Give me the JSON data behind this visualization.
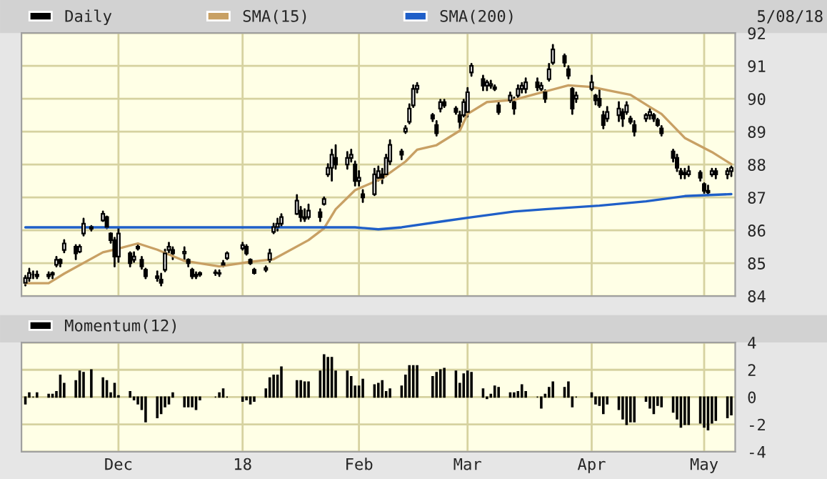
{
  "chart_data": [
    {
      "type": "candlestick",
      "legend": "top left",
      "grid": true,
      "tick_labels": "y",
      "annotations": [
        "5/08/18"
      ],
      "xlim": [
        "2017-11-06",
        "2018-05-09"
      ],
      "ylim": [
        84,
        92
      ],
      "yticks": [
        84,
        85,
        86,
        87,
        88,
        89,
        90,
        91,
        92
      ],
      "xticks": [
        {
          "value": "2017-12-01",
          "label": null
        },
        {
          "value": "2018-01-02",
          "label": null
        },
        {
          "value": "2018-02-01",
          "label": null
        },
        {
          "value": "2018-03-01",
          "label": null
        },
        {
          "value": "2018-04-02",
          "label": null
        },
        {
          "value": "2018-05-01",
          "label": null
        }
      ],
      "x": [
        "2017-11-07",
        "2017-11-08",
        "2017-11-09",
        "2017-11-10",
        "2017-11-13",
        "2017-11-14",
        "2017-11-15",
        "2017-11-16",
        "2017-11-17",
        "2017-11-20",
        "2017-11-21",
        "2017-11-22",
        "2017-11-24",
        "2017-11-27",
        "2017-11-28",
        "2017-11-29",
        "2017-11-30",
        "2017-12-01",
        "2017-12-04",
        "2017-12-05",
        "2017-12-06",
        "2017-12-07",
        "2017-12-08",
        "2017-12-11",
        "2017-12-12",
        "2017-12-13",
        "2017-12-14",
        "2017-12-15",
        "2017-12-18",
        "2017-12-19",
        "2017-12-20",
        "2017-12-21",
        "2017-12-22",
        "2017-12-26",
        "2017-12-27",
        "2017-12-28",
        "2017-12-29",
        "2018-01-02",
        "2018-01-03",
        "2018-01-04",
        "2018-01-05",
        "2018-01-08",
        "2018-01-09",
        "2018-01-10",
        "2018-01-11",
        "2018-01-12",
        "2018-01-16",
        "2018-01-17",
        "2018-01-18",
        "2018-01-19",
        "2018-01-22",
        "2018-01-23",
        "2018-01-24",
        "2018-01-25",
        "2018-01-26",
        "2018-01-29",
        "2018-01-30",
        "2018-01-31",
        "2018-02-01",
        "2018-02-02",
        "2018-02-05",
        "2018-02-06",
        "2018-02-07",
        "2018-02-08",
        "2018-02-09",
        "2018-02-12",
        "2018-02-13",
        "2018-02-14",
        "2018-02-15",
        "2018-02-16",
        "2018-02-20",
        "2018-02-21",
        "2018-02-22",
        "2018-02-23",
        "2018-02-26",
        "2018-02-27",
        "2018-02-28",
        "2018-03-01",
        "2018-03-02",
        "2018-03-05",
        "2018-03-06",
        "2018-03-07",
        "2018-03-08",
        "2018-03-09",
        "2018-03-12",
        "2018-03-13",
        "2018-03-14",
        "2018-03-15",
        "2018-03-16",
        "2018-03-19",
        "2018-03-20",
        "2018-03-21",
        "2018-03-22",
        "2018-03-23",
        "2018-03-26",
        "2018-03-27",
        "2018-03-28",
        "2018-03-29",
        "2018-04-02",
        "2018-04-03",
        "2018-04-04",
        "2018-04-05",
        "2018-04-06",
        "2018-04-09",
        "2018-04-10",
        "2018-04-11",
        "2018-04-12",
        "2018-04-13",
        "2018-04-16",
        "2018-04-17",
        "2018-04-18",
        "2018-04-19",
        "2018-04-20",
        "2018-04-23",
        "2018-04-24",
        "2018-04-25",
        "2018-04-26",
        "2018-04-27",
        "2018-04-30",
        "2018-05-01",
        "2018-05-02",
        "2018-05-03",
        "2018-05-04",
        "2018-05-07",
        "2018-05-08"
      ],
      "series": [
        {
          "name": "Daily",
          "type": "candlestick",
          "color": "#000000",
          "ohlc": [
            [
              84.4,
              84.61,
              84.32,
              84.55
            ],
            [
              84.55,
              84.83,
              84.46,
              84.7
            ],
            [
              84.65,
              84.75,
              84.54,
              84.65
            ],
            [
              84.65,
              84.75,
              84.54,
              84.6
            ],
            [
              84.6,
              84.72,
              84.54,
              84.65
            ],
            [
              84.65,
              84.72,
              84.54,
              84.7
            ],
            [
              84.95,
              85.19,
              84.9,
              85.1
            ],
            [
              85.1,
              85.12,
              84.9,
              85.0
            ],
            [
              85.4,
              85.7,
              85.33,
              85.6
            ],
            [
              85.5,
              85.55,
              85.12,
              85.3
            ],
            [
              85.35,
              85.55,
              85.33,
              85.5
            ],
            [
              85.9,
              86.35,
              85.84,
              86.2
            ],
            [
              86.1,
              86.13,
              85.99,
              86.05
            ],
            [
              86.3,
              86.57,
              86.28,
              86.5
            ],
            [
              86.4,
              86.42,
              86.06,
              86.1
            ],
            [
              85.9,
              85.91,
              85.62,
              85.7
            ],
            [
              85.7,
              85.77,
              84.9,
              85.2
            ],
            [
              85.2,
              86.06,
              85.04,
              85.9
            ],
            [
              85.3,
              85.33,
              84.9,
              85.0
            ],
            [
              85.1,
              85.33,
              85.04,
              85.2
            ],
            [
              85.45,
              85.55,
              85.41,
              85.5
            ],
            [
              85.1,
              85.19,
              84.83,
              84.9
            ],
            [
              84.8,
              84.83,
              84.54,
              84.6
            ],
            [
              84.6,
              84.75,
              84.46,
              84.55
            ],
            [
              84.5,
              84.68,
              84.32,
              84.4
            ],
            [
              84.8,
              85.41,
              84.75,
              85.3
            ],
            [
              85.4,
              85.62,
              85.33,
              85.5
            ],
            [
              85.4,
              85.48,
              85.12,
              85.3
            ],
            [
              85.3,
              85.48,
              85.12,
              85.35
            ],
            [
              85.1,
              85.12,
              84.9,
              85.0
            ],
            [
              84.8,
              84.83,
              84.54,
              84.6
            ],
            [
              84.6,
              84.72,
              84.54,
              84.65
            ],
            [
              84.65,
              84.72,
              84.61,
              84.7
            ],
            [
              84.7,
              84.78,
              84.64,
              84.72
            ],
            [
              84.7,
              84.78,
              84.61,
              84.68
            ],
            [
              84.95,
              85.07,
              84.9,
              85.0
            ],
            [
              85.15,
              85.33,
              85.12,
              85.3
            ],
            [
              85.45,
              85.62,
              85.41,
              85.55
            ],
            [
              85.5,
              85.55,
              85.26,
              85.3
            ],
            [
              85.1,
              85.12,
              84.97,
              85.0
            ],
            [
              84.8,
              84.83,
              84.68,
              84.7
            ],
            [
              84.8,
              84.9,
              84.75,
              84.85
            ],
            [
              85.1,
              85.41,
              85.04,
              85.3
            ],
            [
              85.95,
              86.2,
              85.91,
              86.1
            ],
            [
              86.1,
              86.35,
              85.99,
              86.2
            ],
            [
              86.2,
              86.49,
              86.13,
              86.4
            ],
            [
              86.5,
              87.07,
              86.49,
              86.9
            ],
            [
              86.6,
              86.71,
              86.28,
              86.4
            ],
            [
              86.4,
              86.64,
              86.28,
              86.35
            ],
            [
              86.4,
              86.78,
              86.35,
              86.6
            ],
            [
              86.55,
              86.64,
              86.28,
              86.4
            ],
            [
              86.8,
              87.0,
              86.78,
              86.95
            ],
            [
              87.7,
              88.01,
              87.65,
              87.9
            ],
            [
              87.9,
              88.45,
              87.51,
              88.3
            ],
            [
              88.2,
              88.59,
              87.87,
              88.0
            ],
            [
              88.0,
              88.38,
              87.87,
              88.2
            ],
            [
              88.2,
              88.45,
              88.09,
              88.3
            ],
            [
              88.0,
              88.09,
              87.36,
              87.5
            ],
            [
              87.5,
              87.8,
              87.36,
              87.6
            ],
            [
              87.1,
              87.22,
              86.86,
              87.0
            ],
            [
              87.1,
              87.87,
              87.07,
              87.7
            ],
            [
              87.6,
              87.94,
              87.51,
              87.8
            ],
            [
              87.7,
              87.87,
              87.43,
              87.6
            ],
            [
              87.7,
              88.3,
              87.65,
              88.2
            ],
            [
              88.1,
              88.74,
              88.01,
              88.6
            ],
            [
              88.4,
              88.45,
              88.16,
              88.3
            ],
            [
              89.0,
              89.17,
              88.96,
              89.1
            ],
            [
              89.3,
              89.83,
              89.25,
              89.7
            ],
            [
              89.8,
              90.41,
              89.75,
              90.3
            ],
            [
              90.3,
              90.48,
              90.19,
              90.4
            ],
            [
              89.5,
              89.54,
              89.32,
              89.4
            ],
            [
              89.2,
              89.32,
              88.88,
              88.95
            ],
            [
              89.7,
              89.97,
              89.61,
              89.9
            ],
            [
              89.9,
              89.97,
              89.75,
              89.8
            ],
            [
              89.7,
              89.75,
              89.54,
              89.6
            ],
            [
              89.5,
              89.61,
              89.1,
              89.3
            ],
            [
              89.5,
              89.97,
              89.46,
              89.9
            ],
            [
              89.6,
              90.33,
              89.46,
              90.2
            ],
            [
              90.8,
              91.06,
              90.7,
              91.0
            ],
            [
              90.6,
              90.7,
              90.26,
              90.4
            ],
            [
              90.4,
              90.55,
              90.26,
              90.5
            ],
            [
              90.4,
              90.55,
              90.33,
              90.45
            ],
            [
              90.35,
              90.41,
              90.26,
              90.3
            ],
            [
              89.8,
              89.9,
              89.54,
              89.6
            ],
            [
              89.95,
              90.19,
              89.9,
              90.1
            ],
            [
              89.9,
              90.04,
              89.54,
              89.7
            ],
            [
              90.1,
              90.41,
              90.04,
              90.3
            ],
            [
              90.3,
              90.48,
              90.19,
              90.4
            ],
            [
              90.3,
              90.62,
              90.19,
              90.5
            ],
            [
              90.5,
              90.62,
              90.26,
              90.35
            ],
            [
              90.3,
              90.48,
              90.26,
              90.4
            ],
            [
              90.2,
              90.26,
              89.9,
              90.0
            ],
            [
              90.6,
              91.06,
              90.55,
              90.9
            ],
            [
              91.1,
              91.64,
              91.06,
              91.5
            ],
            [
              91.3,
              91.35,
              90.99,
              91.1
            ],
            [
              90.9,
              90.99,
              90.62,
              90.7
            ],
            [
              90.3,
              90.33,
              89.54,
              89.7
            ],
            [
              90.0,
              90.19,
              89.9,
              90.1
            ],
            [
              90.3,
              90.7,
              90.26,
              90.5
            ],
            [
              90.1,
              90.12,
              89.83,
              89.95
            ],
            [
              90.0,
              90.26,
              89.75,
              89.8
            ],
            [
              89.5,
              89.61,
              89.1,
              89.2
            ],
            [
              89.4,
              89.75,
              89.32,
              89.6
            ],
            [
              89.5,
              89.9,
              89.32,
              89.7
            ],
            [
              89.6,
              89.68,
              89.17,
              89.4
            ],
            [
              89.6,
              89.9,
              89.54,
              89.8
            ],
            [
              89.4,
              89.46,
              89.25,
              89.3
            ],
            [
              89.2,
              89.32,
              88.88,
              89.0
            ],
            [
              89.4,
              89.54,
              89.32,
              89.5
            ],
            [
              89.5,
              89.68,
              89.39,
              89.6
            ],
            [
              89.5,
              89.54,
              89.32,
              89.4
            ],
            [
              89.35,
              89.39,
              89.17,
              89.2
            ],
            [
              89.1,
              89.17,
              88.88,
              88.95
            ],
            [
              88.4,
              88.45,
              88.09,
              88.2
            ],
            [
              88.2,
              88.3,
              87.8,
              87.9
            ],
            [
              87.8,
              87.87,
              87.58,
              87.7
            ],
            [
              87.7,
              87.87,
              87.58,
              87.75
            ],
            [
              87.7,
              87.94,
              87.65,
              87.8
            ],
            [
              87.75,
              87.8,
              87.51,
              87.6
            ],
            [
              87.4,
              87.43,
              87.14,
              87.2
            ],
            [
              87.2,
              87.36,
              87.07,
              87.15
            ],
            [
              87.7,
              87.87,
              87.65,
              87.8
            ],
            [
              87.8,
              87.87,
              87.58,
              87.7
            ],
            [
              87.7,
              87.87,
              87.58,
              87.8
            ],
            [
              87.8,
              87.94,
              87.65,
              87.9
            ]
          ]
        },
        {
          "name": "SMA(15)",
          "type": "line",
          "color": "#c8a064",
          "x": [
            "2017-11-07",
            "2017-11-13",
            "2017-11-17",
            "2017-11-27",
            "2017-11-30",
            "2017-12-06",
            "2017-12-11",
            "2017-12-18",
            "2017-12-27",
            "2018-01-04",
            "2018-01-10",
            "2018-01-19",
            "2018-01-23",
            "2018-01-26",
            "2018-01-31",
            "2018-02-07",
            "2018-02-13",
            "2018-02-16",
            "2018-02-21",
            "2018-02-27",
            "2018-03-01",
            "2018-03-06",
            "2018-03-13",
            "2018-03-20",
            "2018-03-27",
            "2018-04-02",
            "2018-04-06",
            "2018-04-12",
            "2018-04-17",
            "2018-04-20",
            "2018-04-26",
            "2018-05-03",
            "2018-05-08"
          ],
          "values": [
            84.39,
            84.39,
            84.68,
            85.33,
            85.41,
            85.6,
            85.41,
            85.07,
            84.9,
            85.04,
            85.12,
            85.7,
            86.06,
            86.64,
            87.22,
            87.58,
            88.09,
            88.45,
            88.59,
            89.03,
            89.54,
            89.9,
            89.97,
            90.19,
            90.41,
            90.36,
            90.26,
            90.12,
            89.75,
            89.54,
            88.81,
            88.38,
            88.01
          ]
        },
        {
          "name": "SMA(200)",
          "type": "line",
          "color": "#1f5fc8",
          "x": [
            "2017-11-07",
            "2017-12-20",
            "2018-01-31",
            "2018-02-06",
            "2018-02-12",
            "2018-02-23",
            "2018-03-01",
            "2018-03-13",
            "2018-03-21",
            "2018-04-04",
            "2018-04-16",
            "2018-04-26",
            "2018-05-08"
          ],
          "values": [
            86.09,
            86.09,
            86.09,
            86.03,
            86.09,
            86.28,
            86.38,
            86.57,
            86.64,
            86.75,
            86.88,
            87.04,
            87.1
          ]
        }
      ]
    },
    {
      "type": "bar",
      "legend": "top left",
      "grid": true,
      "xlim": [
        "2017-11-06",
        "2018-05-09"
      ],
      "ylim": [
        -4,
        4
      ],
      "yticks": [
        -4,
        -2,
        0,
        2,
        4
      ],
      "xticks": [
        {
          "value": "2017-12-01",
          "label": "Dec"
        },
        {
          "value": "2018-01-02",
          "label": "18"
        },
        {
          "value": "2018-02-01",
          "label": "Feb"
        },
        {
          "value": "2018-03-01",
          "label": "Mar"
        },
        {
          "value": "2018-04-02",
          "label": "Apr"
        },
        {
          "value": "2018-05-01",
          "label": "May"
        }
      ],
      "x": [
        "2017-11-07",
        "2017-11-08",
        "2017-11-09",
        "2017-11-10",
        "2017-11-13",
        "2017-11-14",
        "2017-11-15",
        "2017-11-16",
        "2017-11-17",
        "2017-11-20",
        "2017-11-21",
        "2017-11-22",
        "2017-11-24",
        "2017-11-27",
        "2017-11-28",
        "2017-11-29",
        "2017-11-30",
        "2017-12-01",
        "2017-12-04",
        "2017-12-05",
        "2017-12-06",
        "2017-12-07",
        "2017-12-08",
        "2017-12-11",
        "2017-12-12",
        "2017-12-13",
        "2017-12-14",
        "2017-12-15",
        "2017-12-18",
        "2017-12-19",
        "2017-12-20",
        "2017-12-21",
        "2017-12-22",
        "2017-12-26",
        "2017-12-27",
        "2017-12-28",
        "2017-12-29",
        "2018-01-02",
        "2018-01-03",
        "2018-01-04",
        "2018-01-05",
        "2018-01-08",
        "2018-01-09",
        "2018-01-10",
        "2018-01-11",
        "2018-01-12",
        "2018-01-16",
        "2018-01-17",
        "2018-01-18",
        "2018-01-19",
        "2018-01-22",
        "2018-01-23",
        "2018-01-24",
        "2018-01-25",
        "2018-01-26",
        "2018-01-29",
        "2018-01-30",
        "2018-01-31",
        "2018-02-01",
        "2018-02-02",
        "2018-02-05",
        "2018-02-06",
        "2018-02-07",
        "2018-02-08",
        "2018-02-09",
        "2018-02-12",
        "2018-02-13",
        "2018-02-14",
        "2018-02-15",
        "2018-02-16",
        "2018-02-20",
        "2018-02-21",
        "2018-02-22",
        "2018-02-23",
        "2018-02-26",
        "2018-02-27",
        "2018-02-28",
        "2018-03-01",
        "2018-03-02",
        "2018-03-05",
        "2018-03-06",
        "2018-03-07",
        "2018-03-08",
        "2018-03-09",
        "2018-03-12",
        "2018-03-13",
        "2018-03-14",
        "2018-03-15",
        "2018-03-16",
        "2018-03-19",
        "2018-03-20",
        "2018-03-21",
        "2018-03-22",
        "2018-03-23",
        "2018-03-26",
        "2018-03-27",
        "2018-03-28",
        "2018-03-29",
        "2018-04-02",
        "2018-04-03",
        "2018-04-04",
        "2018-04-05",
        "2018-04-06",
        "2018-04-09",
        "2018-04-10",
        "2018-04-11",
        "2018-04-12",
        "2018-04-13",
        "2018-04-16",
        "2018-04-17",
        "2018-04-18",
        "2018-04-19",
        "2018-04-20",
        "2018-04-23",
        "2018-04-24",
        "2018-04-25",
        "2018-04-26",
        "2018-04-27",
        "2018-04-30",
        "2018-05-01",
        "2018-05-02",
        "2018-05-03",
        "2018-05-04",
        "2018-05-07",
        "2018-05-08"
      ],
      "series": [
        {
          "name": "Momentum(12)",
          "color": "#000000",
          "values": [
            -0.5,
            0.3,
            0,
            0.3,
            0.2,
            0.2,
            0.4,
            1.6,
            1.0,
            1.2,
            1.9,
            1.8,
            2.0,
            1.4,
            1.2,
            0.3,
            1.0,
            0.1,
            0.4,
            -0.2,
            -0.5,
            -0.9,
            -1.8,
            -1.5,
            -1.2,
            -0.7,
            -0.5,
            0.3,
            -0.7,
            -0.7,
            -0.7,
            -0.9,
            -0.2,
            0,
            0.3,
            0.6,
            0,
            -0.3,
            -0.2,
            -0.5,
            -0.3,
            0.6,
            1.4,
            1.6,
            1.6,
            2.2,
            1.2,
            1.2,
            1.1,
            1.1,
            1.9,
            3.1,
            2.9,
            2.9,
            1.9,
            1.9,
            1.5,
            0.8,
            0.8,
            1.3,
            0.9,
            1.0,
            1.2,
            0.4,
            0.6,
            0.8,
            1.6,
            2.3,
            2.3,
            2.3,
            1.5,
            1.8,
            2.0,
            2.1,
            1.9,
            1.0,
            1.7,
            1.9,
            1.8,
            0.6,
            -0.1,
            0.2,
            0.8,
            0.7,
            0.3,
            0.3,
            0.4,
            0.9,
            0.4,
            0,
            -0.8,
            0.2,
            0.7,
            1.1,
            0.7,
            1.1,
            -0.7,
            0,
            0.3,
            -0.5,
            -0.6,
            -1.2,
            -0.5,
            -0.9,
            -1.6,
            -2.0,
            -1.8,
            -1.8,
            -0.3,
            -0.8,
            -1.2,
            -0.6,
            -0.7,
            -1.1,
            -1.6,
            -2.2,
            -2.0,
            -2.0,
            -1.9,
            -2.2,
            -2.4,
            -1.9,
            -1.7,
            -1.5,
            -1.3
          ]
        }
      ]
    }
  ]
}
